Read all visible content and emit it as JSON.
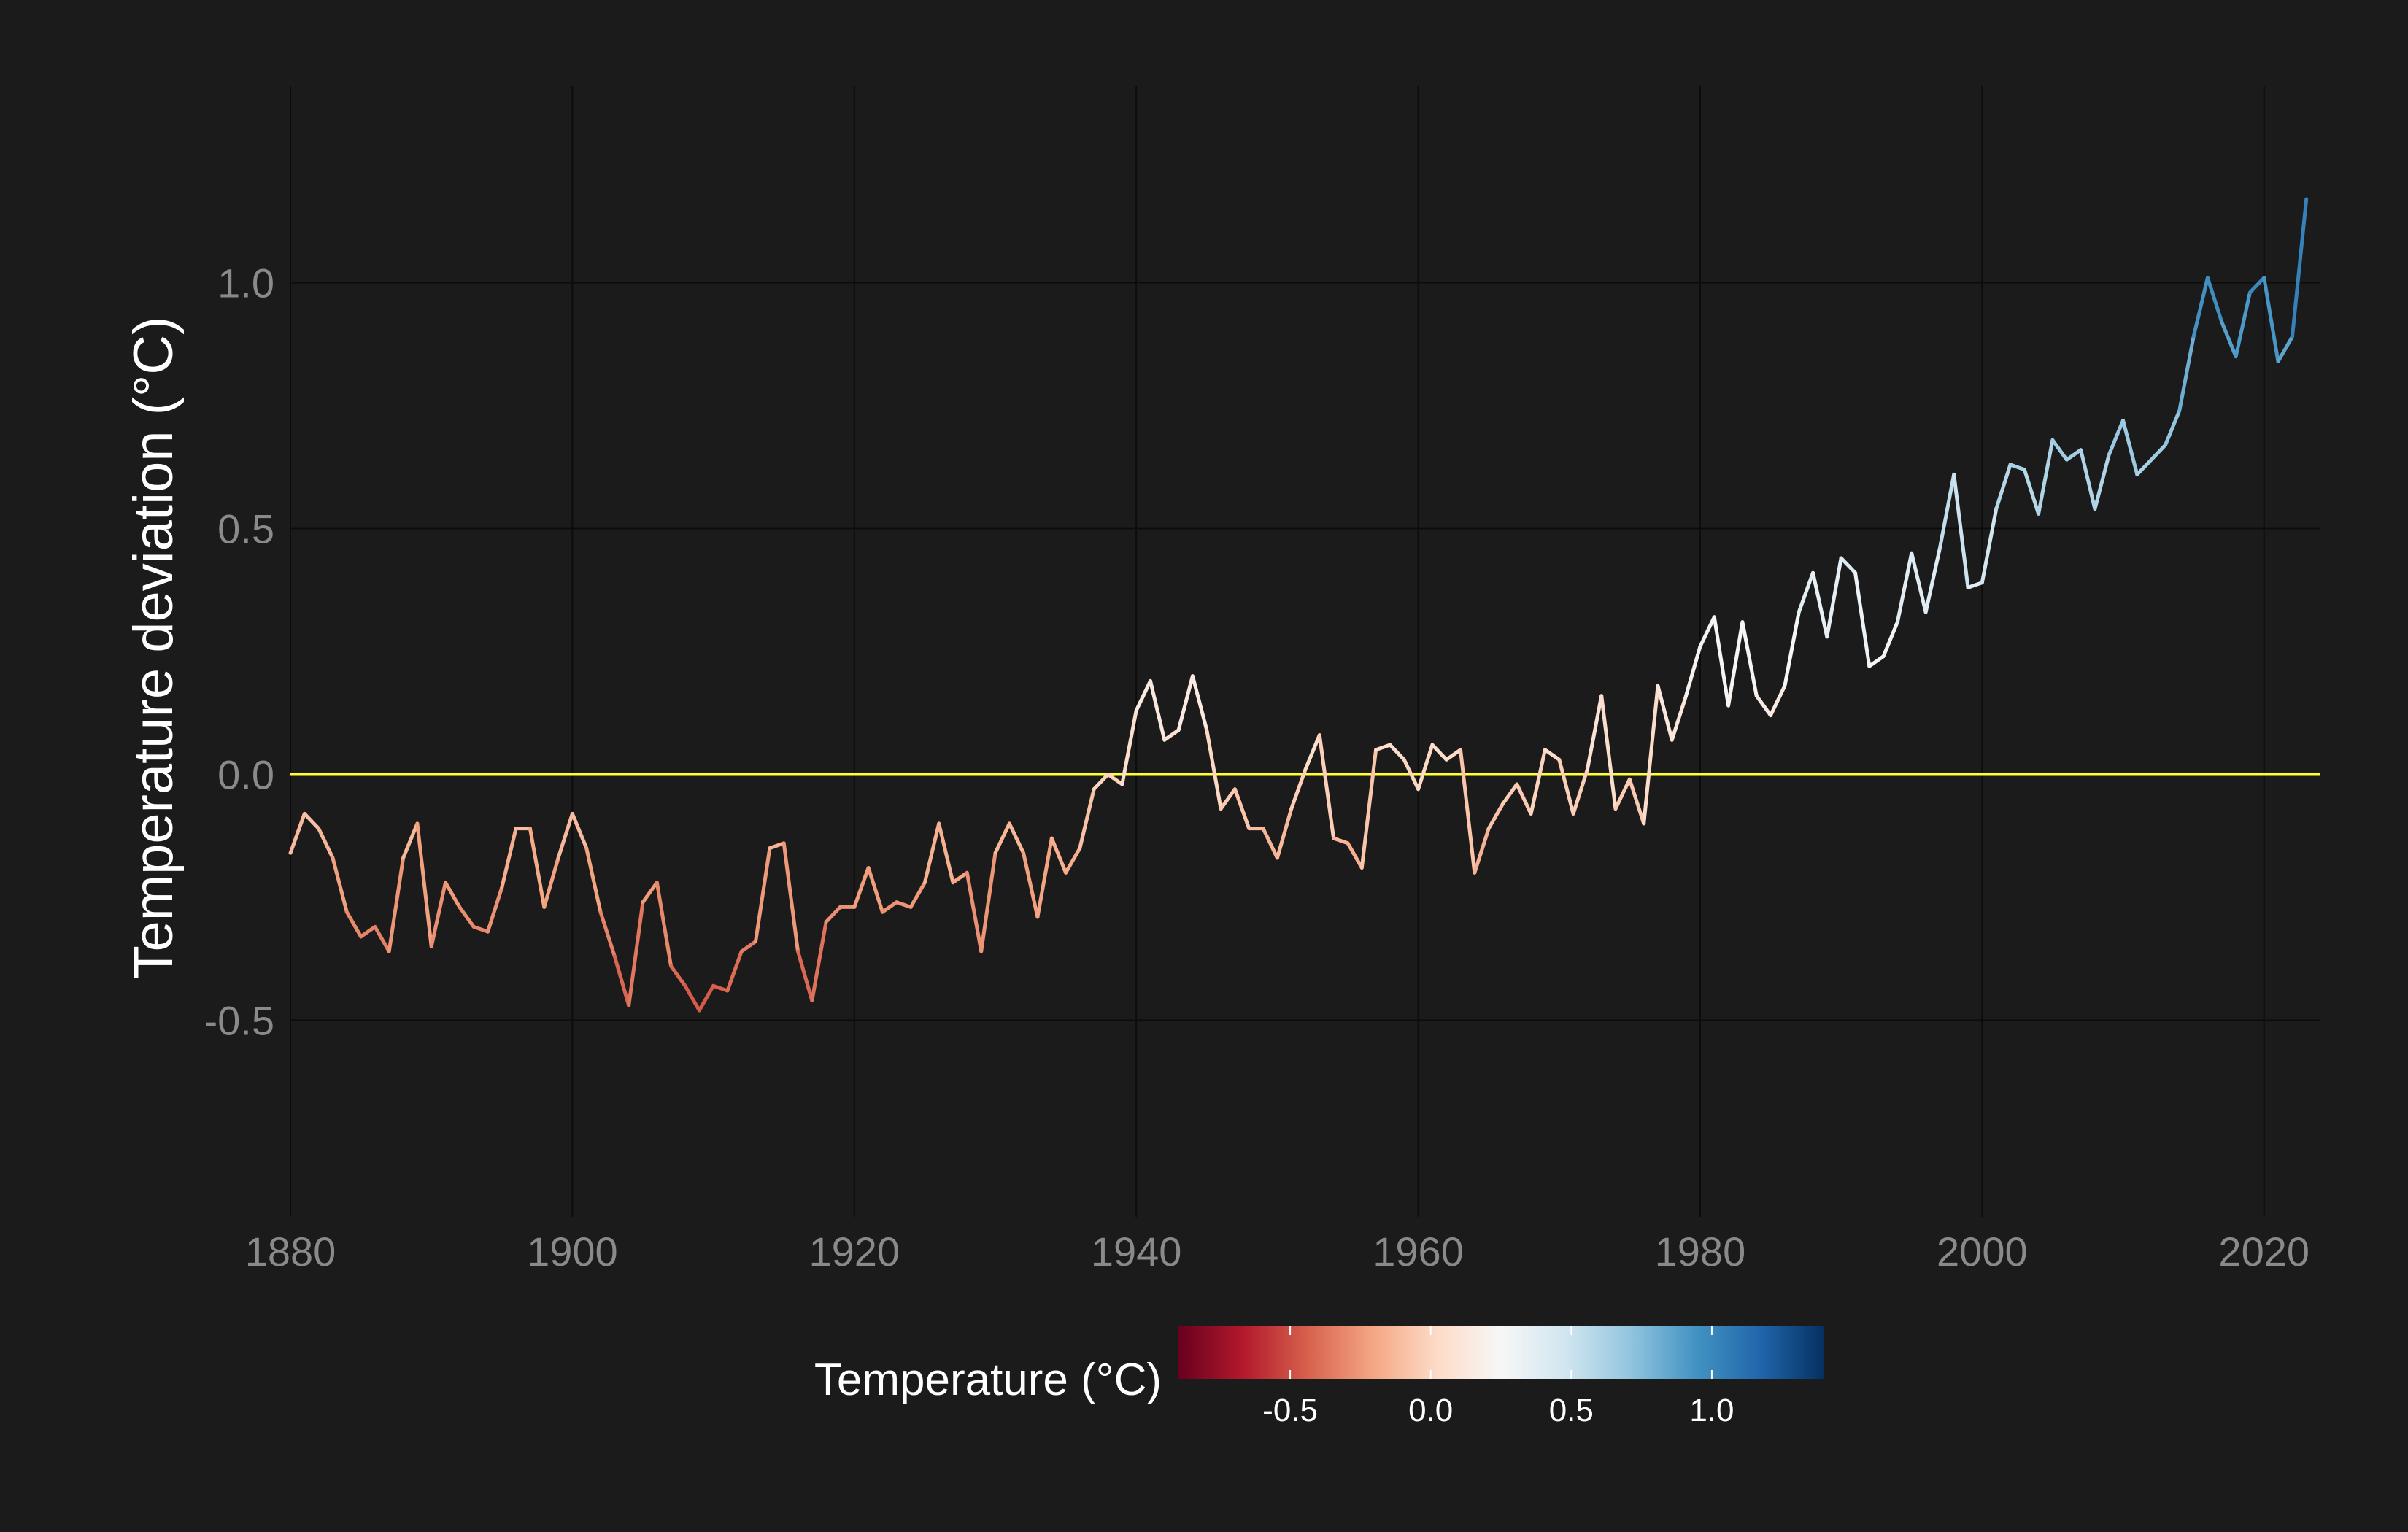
{
  "chart_data": {
    "type": "line",
    "title": "",
    "xlabel": "",
    "ylabel": "Temperature deviation (°C)",
    "xlim": [
      1880,
      2024
    ],
    "ylim": [
      -0.9,
      1.4
    ],
    "x_ticks": [
      "1880",
      "1900",
      "1920",
      "1940",
      "1960",
      "1980",
      "2000",
      "2020"
    ],
    "y_ticks": [
      "-0.5",
      "0.0",
      "0.5",
      "1.0"
    ],
    "reference_line": {
      "y": 0.0,
      "color": "#ffff33"
    },
    "grid": true,
    "background": "#1b1b1b",
    "color_scale": {
      "title": "Temperature (°C)",
      "domain": [
        -0.9,
        1.4
      ],
      "ticks": [
        "-0.5",
        "0.0",
        "0.5",
        "1.0"
      ],
      "palette": [
        "#67001f",
        "#b2182b",
        "#d6604d",
        "#f4a582",
        "#fddbc7",
        "#f7f7f7",
        "#d1e5f0",
        "#92c5de",
        "#4393c3",
        "#2166ac",
        "#053061"
      ],
      "placement": "bottom"
    },
    "series": [
      {
        "x": [
          1880.0,
          1881.0,
          1882.0,
          1883.0,
          1884.0,
          1885.0,
          1886.0,
          1887.0,
          1888.0,
          1889.0,
          1890.0,
          1891.0,
          1892.0,
          1893.0,
          1894.0,
          1895.0,
          1896.0,
          1897.0,
          1898.0,
          1899.0,
          1900.0,
          1901.0,
          1902.0,
          1903.0,
          1904.0,
          1905.0,
          1906.0,
          1907.0,
          1908.0,
          1909.0,
          1910.0,
          1911.0,
          1912.0,
          1913.0,
          1914.0,
          1915.0,
          1916.0,
          1917.0,
          1918.0,
          1919.0,
          1920.0,
          1921.0,
          1922.0,
          1923.0,
          1924.0,
          1925.0,
          1926.0,
          1927.0,
          1928.0,
          1929.0,
          1930.0,
          1931.0,
          1932.0,
          1933.0,
          1934.0,
          1935.0,
          1936.0,
          1937.0,
          1938.0,
          1939.0,
          1940.0,
          1941.0,
          1942.0,
          1943.0,
          1944.0,
          1945.0,
          1946.0,
          1947.0,
          1948.0,
          1949.0,
          1950.0,
          1951.0,
          1952.0,
          1953.0,
          1954.0,
          1955.0,
          1956.0,
          1957.0,
          1958.0,
          1959.0,
          1960.0,
          1961.0,
          1962.0,
          1963.0,
          1964.0,
          1965.0,
          1966.0,
          1967.0,
          1968.0,
          1969.0,
          1970.0,
          1971.0,
          1972.0,
          1973.0,
          1974.0,
          1975.0,
          1976.0,
          1977.0,
          1978.0,
          1979.0,
          1980.0,
          1981.0,
          1982.0,
          1983.0,
          1984.0,
          1985.0,
          1986.0,
          1987.0,
          1988.0,
          1989.0,
          1990.0,
          1991.0,
          1992.0,
          1993.0,
          1994.0,
          1995.0,
          1996.0,
          1997.0,
          1998.0,
          1999.0,
          2000.0,
          2001.0,
          2002.0,
          2003.0,
          2004.0,
          2005.0,
          2006.0,
          2007.0,
          2008.0,
          2009.0,
          2010.0,
          2011.0,
          2012.0,
          2013.0,
          2014.0,
          2015.0,
          2016.0,
          2017.0,
          2018.0,
          2019.0,
          2020.0,
          2021.0,
          2022.0,
          2023.0
        ],
        "y": [
          -0.16,
          -0.08,
          -0.11,
          -0.17,
          -0.28,
          -0.33,
          -0.31,
          -0.36,
          -0.17,
          -0.1,
          -0.35,
          -0.22,
          -0.27,
          -0.31,
          -0.32,
          -0.23,
          -0.11,
          -0.11,
          -0.27,
          -0.17,
          -0.08,
          -0.15,
          -0.28,
          -0.37,
          -0.47,
          -0.26,
          -0.22,
          -0.39,
          -0.43,
          -0.48,
          -0.43,
          -0.44,
          -0.36,
          -0.34,
          -0.15,
          -0.14,
          -0.36,
          -0.46,
          -0.3,
          -0.27,
          -0.27,
          -0.19,
          -0.28,
          -0.26,
          -0.27,
          -0.22,
          -0.1,
          -0.22,
          -0.2,
          -0.36,
          -0.16,
          -0.1,
          -0.16,
          -0.29,
          -0.13,
          -0.2,
          -0.15,
          -0.03,
          -0.0,
          -0.02,
          0.13,
          0.19,
          0.07,
          0.09,
          0.2,
          0.09,
          -0.07,
          -0.03,
          -0.11,
          -0.11,
          -0.17,
          -0.07,
          0.01,
          0.08,
          -0.13,
          -0.14,
          -0.19,
          0.05,
          0.06,
          0.03,
          -0.03,
          0.06,
          0.03,
          0.05,
          -0.2,
          -0.11,
          -0.06,
          -0.02,
          -0.08,
          0.05,
          0.03,
          -0.08,
          0.01,
          0.16,
          -0.07,
          -0.01,
          -0.1,
          0.18,
          0.07,
          0.16,
          0.26,
          0.32,
          0.14,
          0.31,
          0.16,
          0.12,
          0.18,
          0.33,
          0.41,
          0.28,
          0.44,
          0.41,
          0.22,
          0.24,
          0.31,
          0.45,
          0.33,
          0.46,
          0.61,
          0.38,
          0.39,
          0.54,
          0.63,
          0.62,
          0.53,
          0.68,
          0.64,
          0.66,
          0.54,
          0.65,
          0.72,
          0.61,
          0.64,
          0.67,
          0.74,
          0.89,
          1.01,
          0.92,
          0.85,
          0.98,
          1.01,
          0.84,
          0.89,
          1.17
        ],
        "color": "gradient-by-value"
      }
    ]
  }
}
